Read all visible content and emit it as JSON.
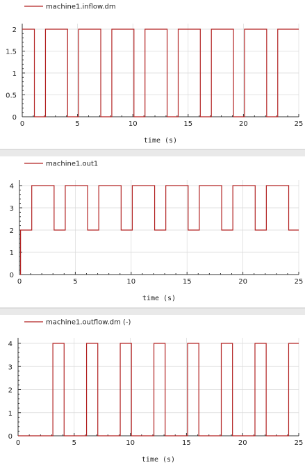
{
  "chart_data": [
    {
      "type": "line",
      "step": true,
      "legend": "machine1.inflow.dm",
      "xlabel": "time (s)",
      "ylabel": "",
      "xlim": [
        0,
        25
      ],
      "ylim": [
        0,
        2
      ],
      "xticks": [
        0,
        5,
        10,
        15,
        20,
        25
      ],
      "yticks": [
        0,
        0.5,
        1,
        1.5,
        2
      ],
      "grid": true,
      "color": "#b22222",
      "series": [
        {
          "name": "machine1.inflow.dm",
          "x": [
            0,
            1.1,
            1.1,
            2.1,
            2.1,
            4.1,
            4.1,
            5.1,
            5.1,
            7.1,
            7.1,
            8.1,
            8.1,
            10.1,
            10.1,
            11.1,
            11.1,
            13.1,
            13.1,
            14.1,
            14.1,
            16.1,
            16.1,
            17.1,
            17.1,
            19.1,
            19.1,
            20.1,
            20.1,
            22.1,
            22.1,
            23.1,
            23.1,
            25
          ],
          "y": [
            2,
            2,
            0,
            0,
            2,
            2,
            0,
            0,
            2,
            2,
            0,
            0,
            2,
            2,
            0,
            0,
            2,
            2,
            0,
            0,
            2,
            2,
            0,
            0,
            2,
            2,
            0,
            0,
            2,
            2,
            0,
            0,
            2,
            2
          ]
        }
      ]
    },
    {
      "type": "line",
      "step": true,
      "legend": "machine1.out1",
      "xlabel": "time (s)",
      "ylabel": "",
      "xlim": [
        0,
        25
      ],
      "ylim": [
        0,
        4
      ],
      "xticks": [
        0,
        5,
        10,
        15,
        20,
        25
      ],
      "yticks": [
        0,
        1,
        2,
        3,
        4
      ],
      "grid": true,
      "color": "#b22222",
      "series": [
        {
          "name": "machine1.out1",
          "x": [
            0.05,
            0.1,
            0.1,
            1.1,
            1.1,
            3.1,
            3.1,
            4.1,
            4.1,
            6.1,
            6.1,
            7.1,
            7.1,
            9.1,
            9.1,
            10.1,
            10.1,
            12.1,
            12.1,
            13.1,
            13.1,
            15.1,
            15.1,
            16.1,
            16.1,
            18.1,
            18.1,
            19.1,
            19.1,
            21.1,
            21.1,
            22.1,
            22.1,
            24.1,
            24.1,
            25
          ],
          "y": [
            0,
            0,
            2,
            2,
            4,
            4,
            2,
            2,
            4,
            4,
            2,
            2,
            4,
            4,
            2,
            2,
            4,
            4,
            2,
            2,
            4,
            4,
            2,
            2,
            4,
            4,
            2,
            2,
            4,
            4,
            2,
            2,
            4,
            4,
            2,
            2
          ]
        }
      ]
    },
    {
      "type": "line",
      "step": true,
      "legend": "machine1.outflow.dm (-)",
      "xlabel": "time (s)",
      "ylabel": "",
      "xlim": [
        0,
        25
      ],
      "ylim": [
        0,
        4
      ],
      "xticks": [
        0,
        5,
        10,
        15,
        20,
        25
      ],
      "yticks": [
        0,
        1,
        2,
        3,
        4
      ],
      "grid": true,
      "color": "#b22222",
      "series": [
        {
          "name": "machine1.outflow.dm (-)",
          "x": [
            0,
            3.1,
            3.1,
            4.1,
            4.1,
            6.1,
            6.1,
            7.1,
            7.1,
            9.1,
            9.1,
            10.1,
            10.1,
            12.1,
            12.1,
            13.1,
            13.1,
            15.1,
            15.1,
            16.1,
            16.1,
            18.1,
            18.1,
            19.1,
            19.1,
            21.1,
            21.1,
            22.1,
            22.1,
            24.1,
            24.1,
            25
          ],
          "y": [
            0,
            0,
            4,
            4,
            0,
            0,
            4,
            4,
            0,
            0,
            4,
            4,
            0,
            0,
            4,
            4,
            0,
            0,
            4,
            4,
            0,
            0,
            4,
            4,
            0,
            0,
            4,
            4,
            0,
            0,
            4,
            4
          ]
        }
      ]
    }
  ]
}
